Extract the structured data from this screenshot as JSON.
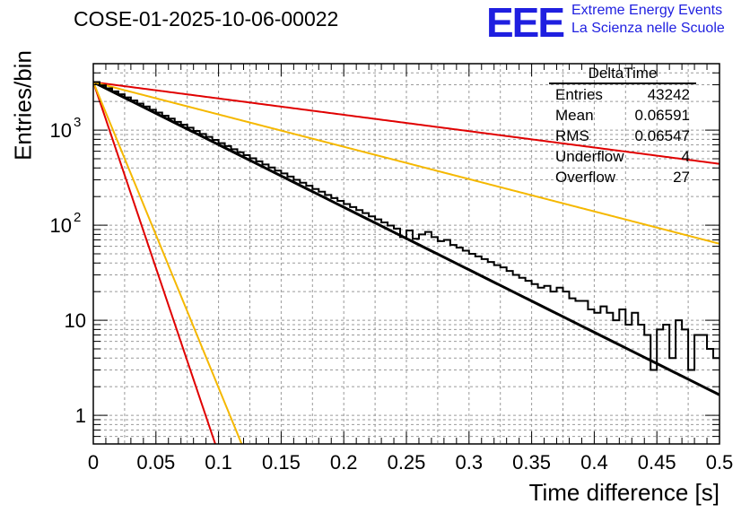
{
  "header": {
    "title": "COSE-01-2025-10-06-00022",
    "logo_text": "EEE",
    "logo_line1": "Extreme Energy Events",
    "logo_line2": "La Scienza nelle Scuole"
  },
  "stats": {
    "title": "DeltaTime",
    "rows": [
      {
        "label": "Entries",
        "value": "43242"
      },
      {
        "label": "Mean",
        "value": "0.06591"
      },
      {
        "label": "RMS",
        "value": "0.06547"
      },
      {
        "label": "Underflow",
        "value": "4"
      },
      {
        "label": "Overflow",
        "value": "27"
      }
    ]
  },
  "colors": {
    "histogram": "#000000",
    "red": "#e00000",
    "yellow": "#f5b800",
    "grid": "#9a9a9a"
  },
  "chart_data": {
    "type": "histogram",
    "title": "COSE-01-2025-10-06-00022",
    "xlabel": "Time difference [s]",
    "ylabel": "Entries/bin",
    "xlim": [
      0,
      0.5
    ],
    "ylim": [
      0.5,
      5000
    ],
    "yscale": "log",
    "grid": true,
    "bin_width": 0.005,
    "xticks": [
      "0",
      "0.05",
      "0.1",
      "0.15",
      "0.2",
      "0.25",
      "0.3",
      "0.35",
      "0.4",
      "0.45",
      "0.5"
    ],
    "yticks": [
      {
        "value": 1,
        "label": "1"
      },
      {
        "value": 10,
        "label": "10"
      },
      {
        "value": 100,
        "label": "10",
        "exp": "2"
      },
      {
        "value": 1000,
        "label": "10",
        "exp": "3"
      }
    ],
    "histogram_counts": [
      3200,
      2960,
      2750,
      2560,
      2380,
      2210,
      2050,
      1900,
      1770,
      1640,
      1530,
      1420,
      1320,
      1220,
      1140,
      1060,
      980,
      910,
      850,
      790,
      730,
      680,
      630,
      585,
      545,
      505,
      470,
      435,
      405,
      375,
      350,
      325,
      300,
      280,
      260,
      240,
      225,
      208,
      193,
      180,
      167,
      155,
      144,
      134,
      124,
      115,
      107,
      99,
      92,
      75,
      88,
      72,
      80,
      85,
      75,
      68,
      70,
      62,
      58,
      54,
      50,
      47,
      44,
      41,
      38,
      36,
      33,
      30,
      28,
      26,
      24,
      22,
      23,
      20,
      22,
      20,
      17,
      16,
      16,
      13,
      12,
      14,
      12,
      10,
      13,
      9,
      12,
      9,
      7,
      3,
      8,
      9,
      4,
      10,
      8,
      3,
      7,
      7,
      5,
      4
    ],
    "fit_lines": [
      {
        "name": "fit",
        "color": "black",
        "amplitude": 3200,
        "rate": 15.15
      },
      {
        "name": "upper-slow",
        "color": "red",
        "amplitude": 3200,
        "rate": 3.96
      },
      {
        "name": "upper-slow",
        "color": "yellow",
        "amplitude": 3200,
        "rate": 7.83
      },
      {
        "name": "steep",
        "color": "red",
        "amplitude": 3200,
        "rate": 90
      },
      {
        "name": "steep",
        "color": "yellow",
        "amplitude": 3200,
        "rate": 74
      }
    ]
  }
}
